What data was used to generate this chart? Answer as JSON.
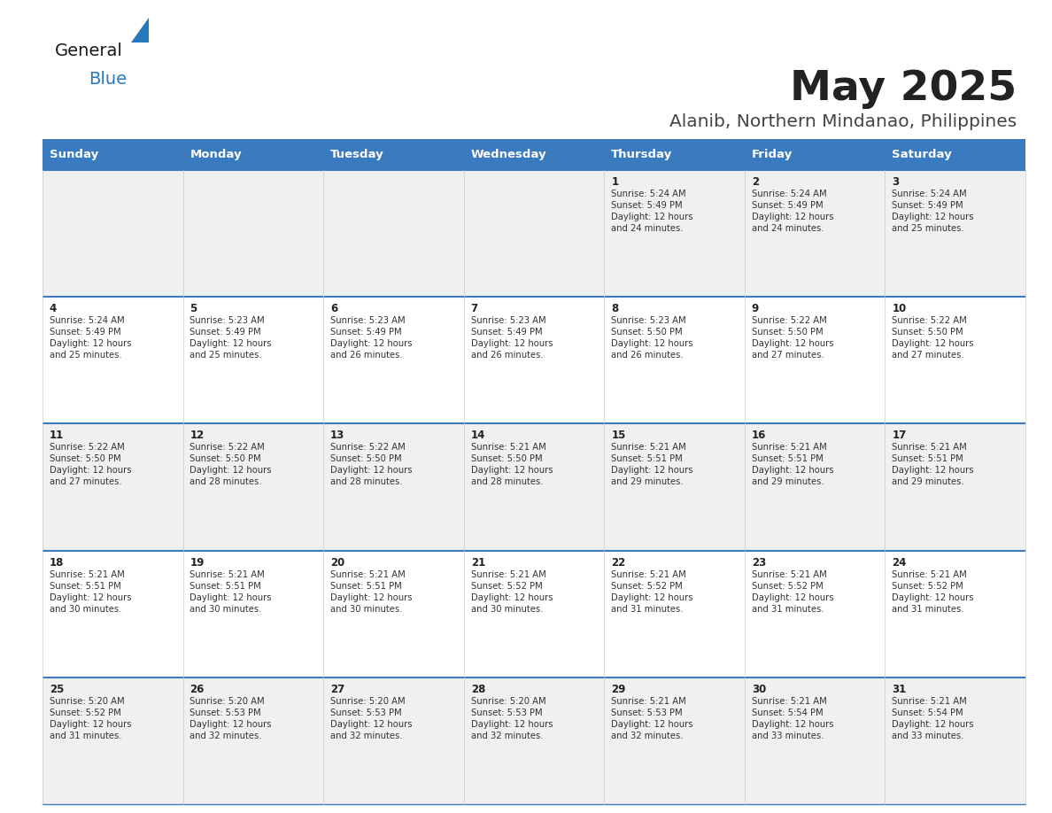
{
  "title": "May 2025",
  "subtitle": "Alanib, Northern Mindanao, Philippines",
  "days_of_week": [
    "Sunday",
    "Monday",
    "Tuesday",
    "Wednesday",
    "Thursday",
    "Friday",
    "Saturday"
  ],
  "header_bg": "#3a7abf",
  "header_text": "#ffffff",
  "row_bg_odd": "#f0f0f0",
  "row_bg_even": "#ffffff",
  "cell_text_color": "#333333",
  "day_num_color": "#222222",
  "border_color": "#3a7abf",
  "title_color": "#222222",
  "subtitle_color": "#444444",
  "logo_general_color": "#1a1a1a",
  "logo_blue_color": "#2878be",
  "weeks": [
    [
      {
        "day": null,
        "sunrise": null,
        "sunset": null,
        "daylight": null
      },
      {
        "day": null,
        "sunrise": null,
        "sunset": null,
        "daylight": null
      },
      {
        "day": null,
        "sunrise": null,
        "sunset": null,
        "daylight": null
      },
      {
        "day": null,
        "sunrise": null,
        "sunset": null,
        "daylight": null
      },
      {
        "day": 1,
        "sunrise": "5:24 AM",
        "sunset": "5:49 PM",
        "daylight": "12 hours and 24 minutes."
      },
      {
        "day": 2,
        "sunrise": "5:24 AM",
        "sunset": "5:49 PM",
        "daylight": "12 hours and 24 minutes."
      },
      {
        "day": 3,
        "sunrise": "5:24 AM",
        "sunset": "5:49 PM",
        "daylight": "12 hours and 25 minutes."
      }
    ],
    [
      {
        "day": 4,
        "sunrise": "5:24 AM",
        "sunset": "5:49 PM",
        "daylight": "12 hours and 25 minutes."
      },
      {
        "day": 5,
        "sunrise": "5:23 AM",
        "sunset": "5:49 PM",
        "daylight": "12 hours and 25 minutes."
      },
      {
        "day": 6,
        "sunrise": "5:23 AM",
        "sunset": "5:49 PM",
        "daylight": "12 hours and 26 minutes."
      },
      {
        "day": 7,
        "sunrise": "5:23 AM",
        "sunset": "5:49 PM",
        "daylight": "12 hours and 26 minutes."
      },
      {
        "day": 8,
        "sunrise": "5:23 AM",
        "sunset": "5:50 PM",
        "daylight": "12 hours and 26 minutes."
      },
      {
        "day": 9,
        "sunrise": "5:22 AM",
        "sunset": "5:50 PM",
        "daylight": "12 hours and 27 minutes."
      },
      {
        "day": 10,
        "sunrise": "5:22 AM",
        "sunset": "5:50 PM",
        "daylight": "12 hours and 27 minutes."
      }
    ],
    [
      {
        "day": 11,
        "sunrise": "5:22 AM",
        "sunset": "5:50 PM",
        "daylight": "12 hours and 27 minutes."
      },
      {
        "day": 12,
        "sunrise": "5:22 AM",
        "sunset": "5:50 PM",
        "daylight": "12 hours and 28 minutes."
      },
      {
        "day": 13,
        "sunrise": "5:22 AM",
        "sunset": "5:50 PM",
        "daylight": "12 hours and 28 minutes."
      },
      {
        "day": 14,
        "sunrise": "5:21 AM",
        "sunset": "5:50 PM",
        "daylight": "12 hours and 28 minutes."
      },
      {
        "day": 15,
        "sunrise": "5:21 AM",
        "sunset": "5:51 PM",
        "daylight": "12 hours and 29 minutes."
      },
      {
        "day": 16,
        "sunrise": "5:21 AM",
        "sunset": "5:51 PM",
        "daylight": "12 hours and 29 minutes."
      },
      {
        "day": 17,
        "sunrise": "5:21 AM",
        "sunset": "5:51 PM",
        "daylight": "12 hours and 29 minutes."
      }
    ],
    [
      {
        "day": 18,
        "sunrise": "5:21 AM",
        "sunset": "5:51 PM",
        "daylight": "12 hours and 30 minutes."
      },
      {
        "day": 19,
        "sunrise": "5:21 AM",
        "sunset": "5:51 PM",
        "daylight": "12 hours and 30 minutes."
      },
      {
        "day": 20,
        "sunrise": "5:21 AM",
        "sunset": "5:51 PM",
        "daylight": "12 hours and 30 minutes."
      },
      {
        "day": 21,
        "sunrise": "5:21 AM",
        "sunset": "5:52 PM",
        "daylight": "12 hours and 30 minutes."
      },
      {
        "day": 22,
        "sunrise": "5:21 AM",
        "sunset": "5:52 PM",
        "daylight": "12 hours and 31 minutes."
      },
      {
        "day": 23,
        "sunrise": "5:21 AM",
        "sunset": "5:52 PM",
        "daylight": "12 hours and 31 minutes."
      },
      {
        "day": 24,
        "sunrise": "5:21 AM",
        "sunset": "5:52 PM",
        "daylight": "12 hours and 31 minutes."
      }
    ],
    [
      {
        "day": 25,
        "sunrise": "5:20 AM",
        "sunset": "5:52 PM",
        "daylight": "12 hours and 31 minutes."
      },
      {
        "day": 26,
        "sunrise": "5:20 AM",
        "sunset": "5:53 PM",
        "daylight": "12 hours and 32 minutes."
      },
      {
        "day": 27,
        "sunrise": "5:20 AM",
        "sunset": "5:53 PM",
        "daylight": "12 hours and 32 minutes."
      },
      {
        "day": 28,
        "sunrise": "5:20 AM",
        "sunset": "5:53 PM",
        "daylight": "12 hours and 32 minutes."
      },
      {
        "day": 29,
        "sunrise": "5:21 AM",
        "sunset": "5:53 PM",
        "daylight": "12 hours and 32 minutes."
      },
      {
        "day": 30,
        "sunrise": "5:21 AM",
        "sunset": "5:54 PM",
        "daylight": "12 hours and 33 minutes."
      },
      {
        "day": 31,
        "sunrise": "5:21 AM",
        "sunset": "5:54 PM",
        "daylight": "12 hours and 33 minutes."
      }
    ]
  ]
}
